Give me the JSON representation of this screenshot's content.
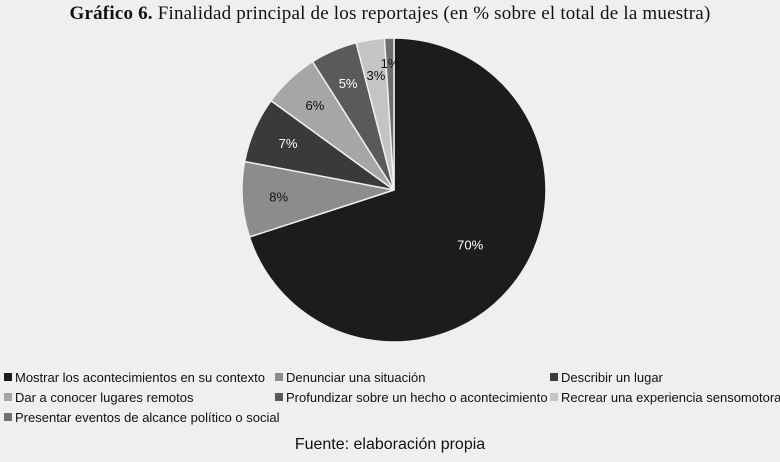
{
  "title": {
    "bold": "Gráfico 6.",
    "rest": "Finalidad principal de los reportajes (en % sobre el total de la muestra)"
  },
  "source": "Fuente: elaboración propia",
  "chart_data": {
    "type": "pie",
    "title": "Gráfico 6. Finalidad principal de los reportajes (en % sobre el total de la muestra)",
    "start_angle_deg": 0,
    "direction": "clockwise",
    "unit": "%",
    "legend_position": "bottom",
    "slices": [
      {
        "label": "Mostrar los acontecimientos en su contexto",
        "value": 70,
        "display": "70%",
        "color": "#1c1c1c",
        "label_color": "#ffffff"
      },
      {
        "label": "Denunciar una situación",
        "value": 8,
        "display": "8%",
        "color": "#8c8c8c",
        "label_color": "#111111"
      },
      {
        "label": "Describir un lugar",
        "value": 7,
        "display": "7%",
        "color": "#3a3a3a",
        "label_color": "#ffffff"
      },
      {
        "label": "Dar a conocer lugares remotos",
        "value": 6,
        "display": "6%",
        "color": "#a6a6a6",
        "label_color": "#111111"
      },
      {
        "label": "Profundizar sobre un hecho o acontecimiento",
        "value": 5,
        "display": "5%",
        "color": "#5a5a5a",
        "label_color": "#ffffff"
      },
      {
        "label": "Recrear una experiencia sensomotora",
        "value": 3,
        "display": "3%",
        "color": "#c4c4c4",
        "label_color": "#111111"
      },
      {
        "label": "Presentar eventos de alcance político o social",
        "value": 1,
        "display": "1%",
        "color": "#6e6e6e",
        "label_color": "#111111"
      }
    ]
  }
}
